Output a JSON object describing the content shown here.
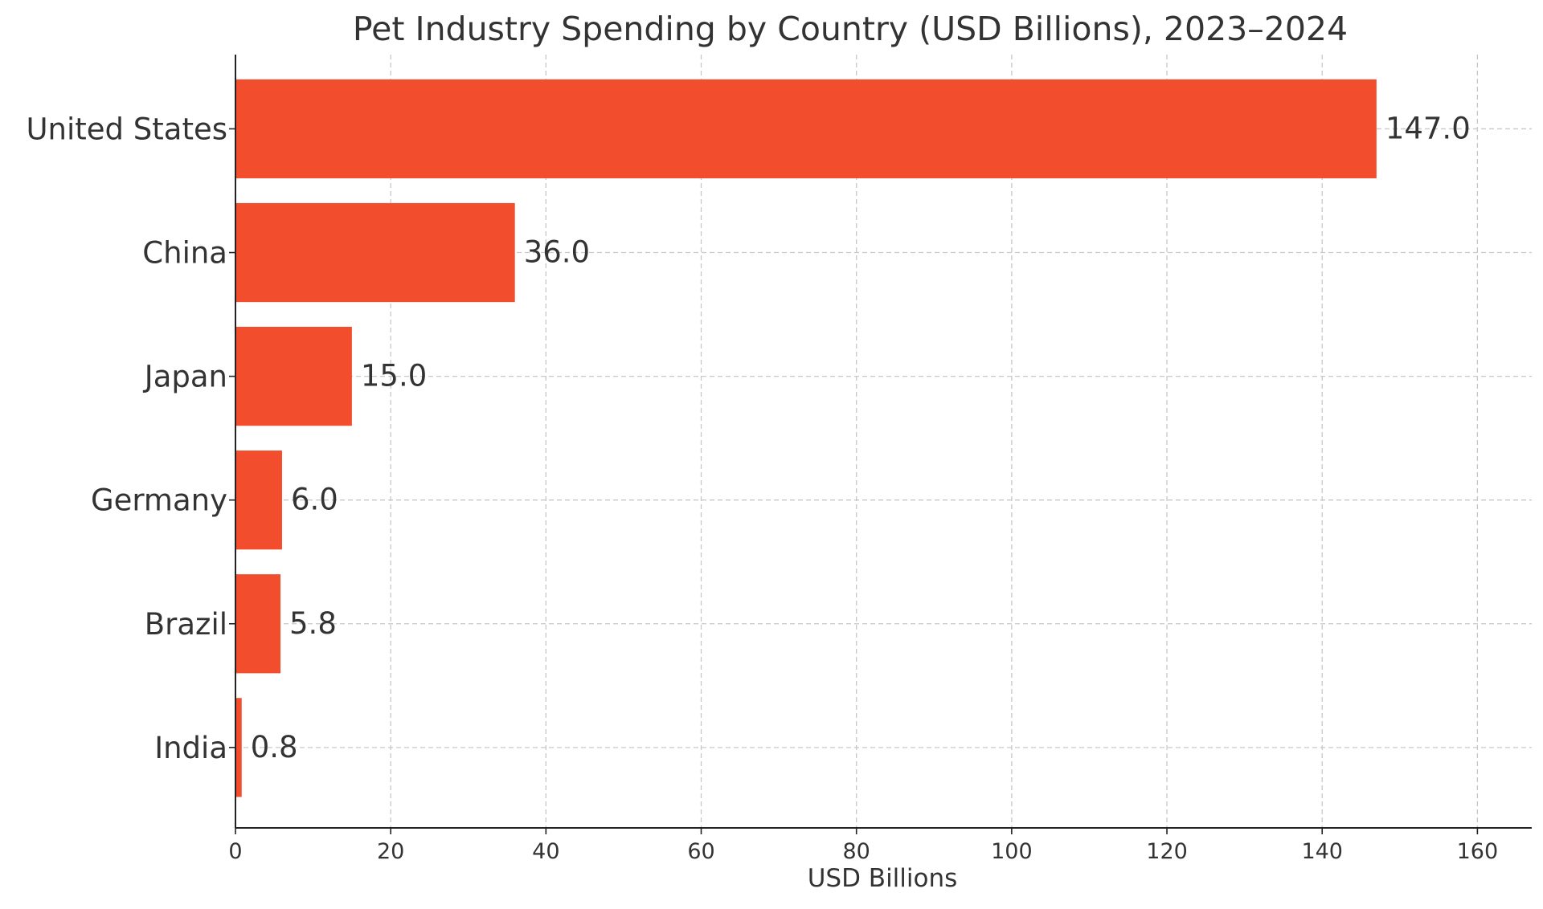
{
  "chart_data": {
    "type": "bar",
    "orientation": "horizontal",
    "title": "Pet Industry Spending by Country (USD Billions), 2023–2024",
    "xlabel": "USD Billions",
    "ylabel": "",
    "categories": [
      "United States",
      "China",
      "Japan",
      "Germany",
      "Brazil",
      "India"
    ],
    "values": [
      147.0,
      36.0,
      15.0,
      6.0,
      5.8,
      0.8
    ],
    "value_labels": [
      "147.0",
      "36.0",
      "15.0",
      "6.0",
      "5.8",
      "0.8"
    ],
    "xlim": [
      0,
      167
    ],
    "xticks": [
      0,
      20,
      40,
      60,
      80,
      100,
      120,
      140,
      160
    ],
    "grid": true,
    "bar_color": "#F24E2E"
  }
}
